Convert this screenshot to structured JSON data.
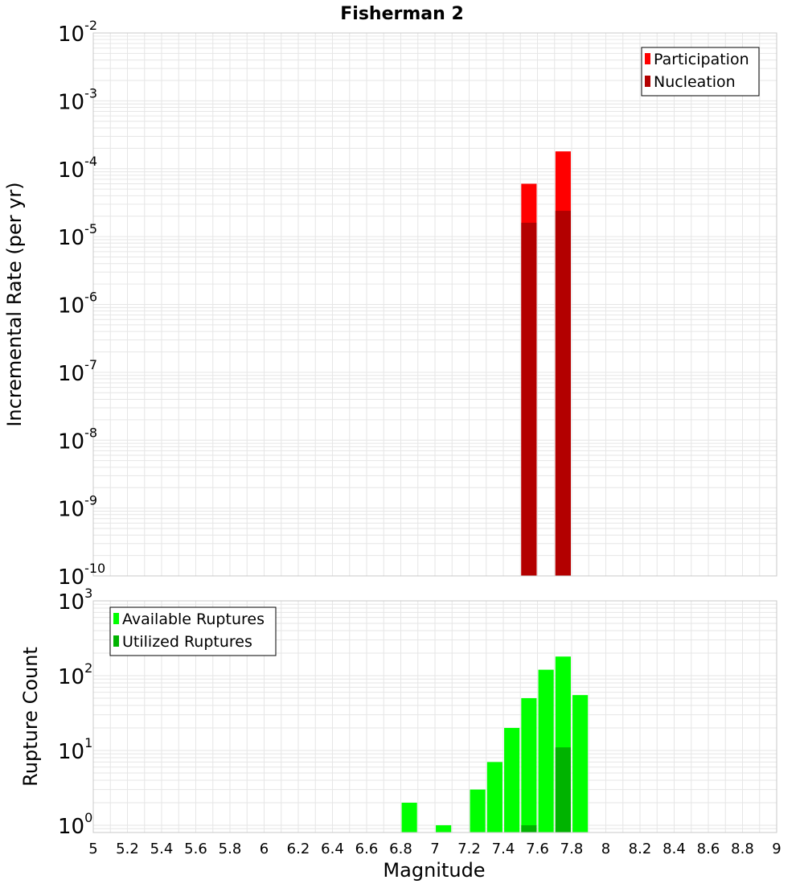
{
  "figure": {
    "title": "Fisherman 2",
    "xlabel": "Magnitude"
  },
  "colors": {
    "participation": "#ff0000",
    "nucleation": "#b30000",
    "available": "#00ff00",
    "utilized": "#00b300",
    "grid": "#e6e6e6",
    "frame": "#c8c8c8"
  },
  "chart_data": [
    {
      "type": "bar",
      "name": "rate",
      "ylabel": "Incremental Rate (per yr)",
      "yscale": "log",
      "ylim": [
        1e-10,
        0.01
      ],
      "xlim": [
        5,
        9
      ],
      "x_ticks": [
        "5",
        "5.2",
        "5.4",
        "5.6",
        "5.8",
        "6",
        "6.2",
        "6.4",
        "6.6",
        "6.8",
        "7",
        "7.2",
        "7.4",
        "7.6",
        "7.8",
        "8",
        "8.2",
        "8.4",
        "8.6",
        "8.8",
        "9"
      ],
      "y_tick_bases": [
        "10",
        "10",
        "10",
        "10",
        "10",
        "10",
        "10",
        "10",
        "10"
      ],
      "y_tick_exponents": [
        "-10",
        "-9",
        "-8",
        "-7",
        "-6",
        "-5",
        "-4",
        "-3",
        "-2"
      ],
      "legend": {
        "position": "top-right",
        "entries": [
          "Participation",
          "Nucleation"
        ]
      },
      "bar_width": 0.09,
      "series": [
        {
          "name": "Participation",
          "x": [
            7.55,
            7.75
          ],
          "values": [
            6e-05,
            0.00018
          ]
        },
        {
          "name": "Nucleation",
          "x": [
            7.55,
            7.75
          ],
          "values": [
            1.6e-05,
            2.4e-05
          ]
        }
      ]
    },
    {
      "type": "bar",
      "name": "count",
      "ylabel": "Rupture Count",
      "yscale": "log",
      "ylim": [
        0.8,
        1000
      ],
      "xlim": [
        5,
        9
      ],
      "x_ticks": [
        "5",
        "5.2",
        "5.4",
        "5.6",
        "5.8",
        "6",
        "6.2",
        "6.4",
        "6.6",
        "6.8",
        "7",
        "7.2",
        "7.4",
        "7.6",
        "7.8",
        "8",
        "8.2",
        "8.4",
        "8.6",
        "8.8",
        "9"
      ],
      "y_tick_bases": [
        "10",
        "10",
        "10",
        "10"
      ],
      "y_tick_exponents": [
        "0",
        "1",
        "2",
        "3"
      ],
      "legend": {
        "position": "top-left",
        "entries": [
          "Available Ruptures",
          "Utilized Ruptures"
        ]
      },
      "bar_width": 0.09,
      "series": [
        {
          "name": "Available Ruptures",
          "x": [
            6.85,
            7.05,
            7.25,
            7.35,
            7.45,
            7.55,
            7.65,
            7.75,
            7.85
          ],
          "values": [
            2,
            1,
            3,
            7,
            20,
            50,
            120,
            180,
            55
          ]
        },
        {
          "name": "Utilized Ruptures",
          "x": [
            7.55,
            7.75
          ],
          "values": [
            1,
            11
          ]
        }
      ]
    }
  ]
}
